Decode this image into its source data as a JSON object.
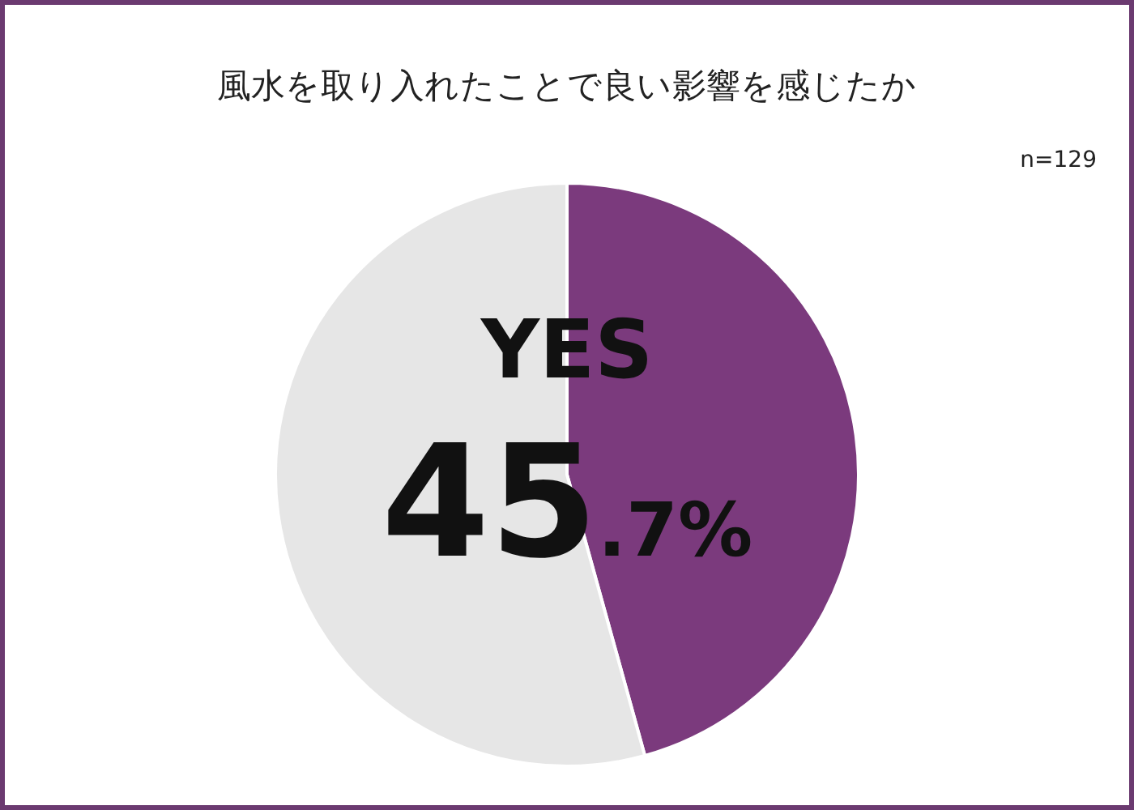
{
  "chart_data": {
    "type": "pie",
    "title": "風水を取り入れたことで良い影響を感じたか",
    "annotations": [
      "n=129"
    ],
    "categories": [
      "YES",
      null
    ],
    "values": [
      45.7,
      54.3
    ],
    "colors": [
      "#7b3a7d",
      "#e6e6e6"
    ],
    "value_labels": [
      "45.7%",
      null
    ],
    "legend": false
  }
}
